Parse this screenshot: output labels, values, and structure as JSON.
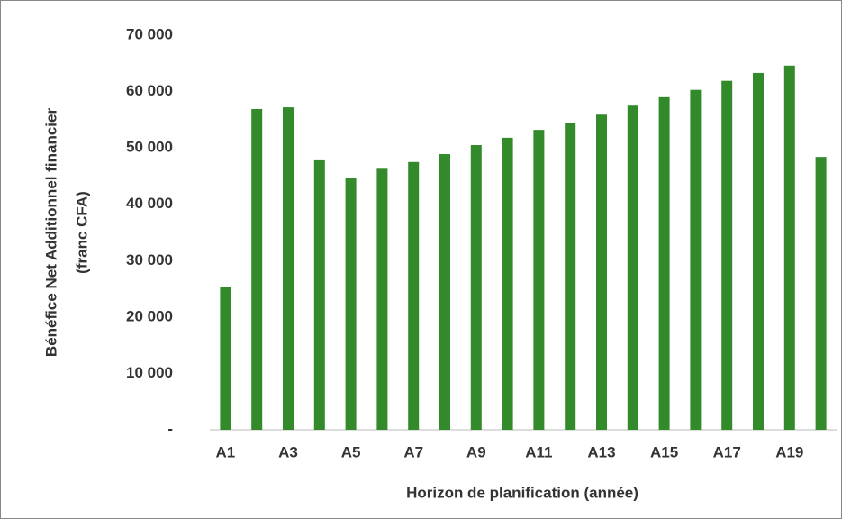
{
  "chart_data": {
    "type": "bar",
    "ylabel": [
      "Bénéfice Net Additionnel financier",
      "(franc CFA)"
    ],
    "xlabel": "Horizon de planification (année)",
    "categories": [
      "A1",
      null,
      "A3",
      null,
      "A5",
      null,
      "A7",
      null,
      "A9",
      null,
      "A11",
      null,
      "A13",
      null,
      "A15",
      null,
      "A17",
      null,
      "A19",
      null
    ],
    "values": [
      25400,
      56900,
      57200,
      47800,
      44700,
      46300,
      47500,
      48900,
      50500,
      51800,
      53200,
      54500,
      55900,
      57500,
      59000,
      60300,
      61900,
      63300,
      64600,
      48400
    ],
    "color": "#338a2b",
    "ylim": [
      0,
      70000
    ],
    "yticks": [
      {
        "value": 0,
        "label": "-"
      },
      {
        "value": 10000,
        "label": "10 000"
      },
      {
        "value": 20000,
        "label": "20 000"
      },
      {
        "value": 30000,
        "label": "30 000"
      },
      {
        "value": 40000,
        "label": "40 000"
      },
      {
        "value": 50000,
        "label": "50 000"
      },
      {
        "value": 60000,
        "label": "60 000"
      },
      {
        "value": 70000,
        "label": "70 000"
      }
    ],
    "grid": false
  }
}
